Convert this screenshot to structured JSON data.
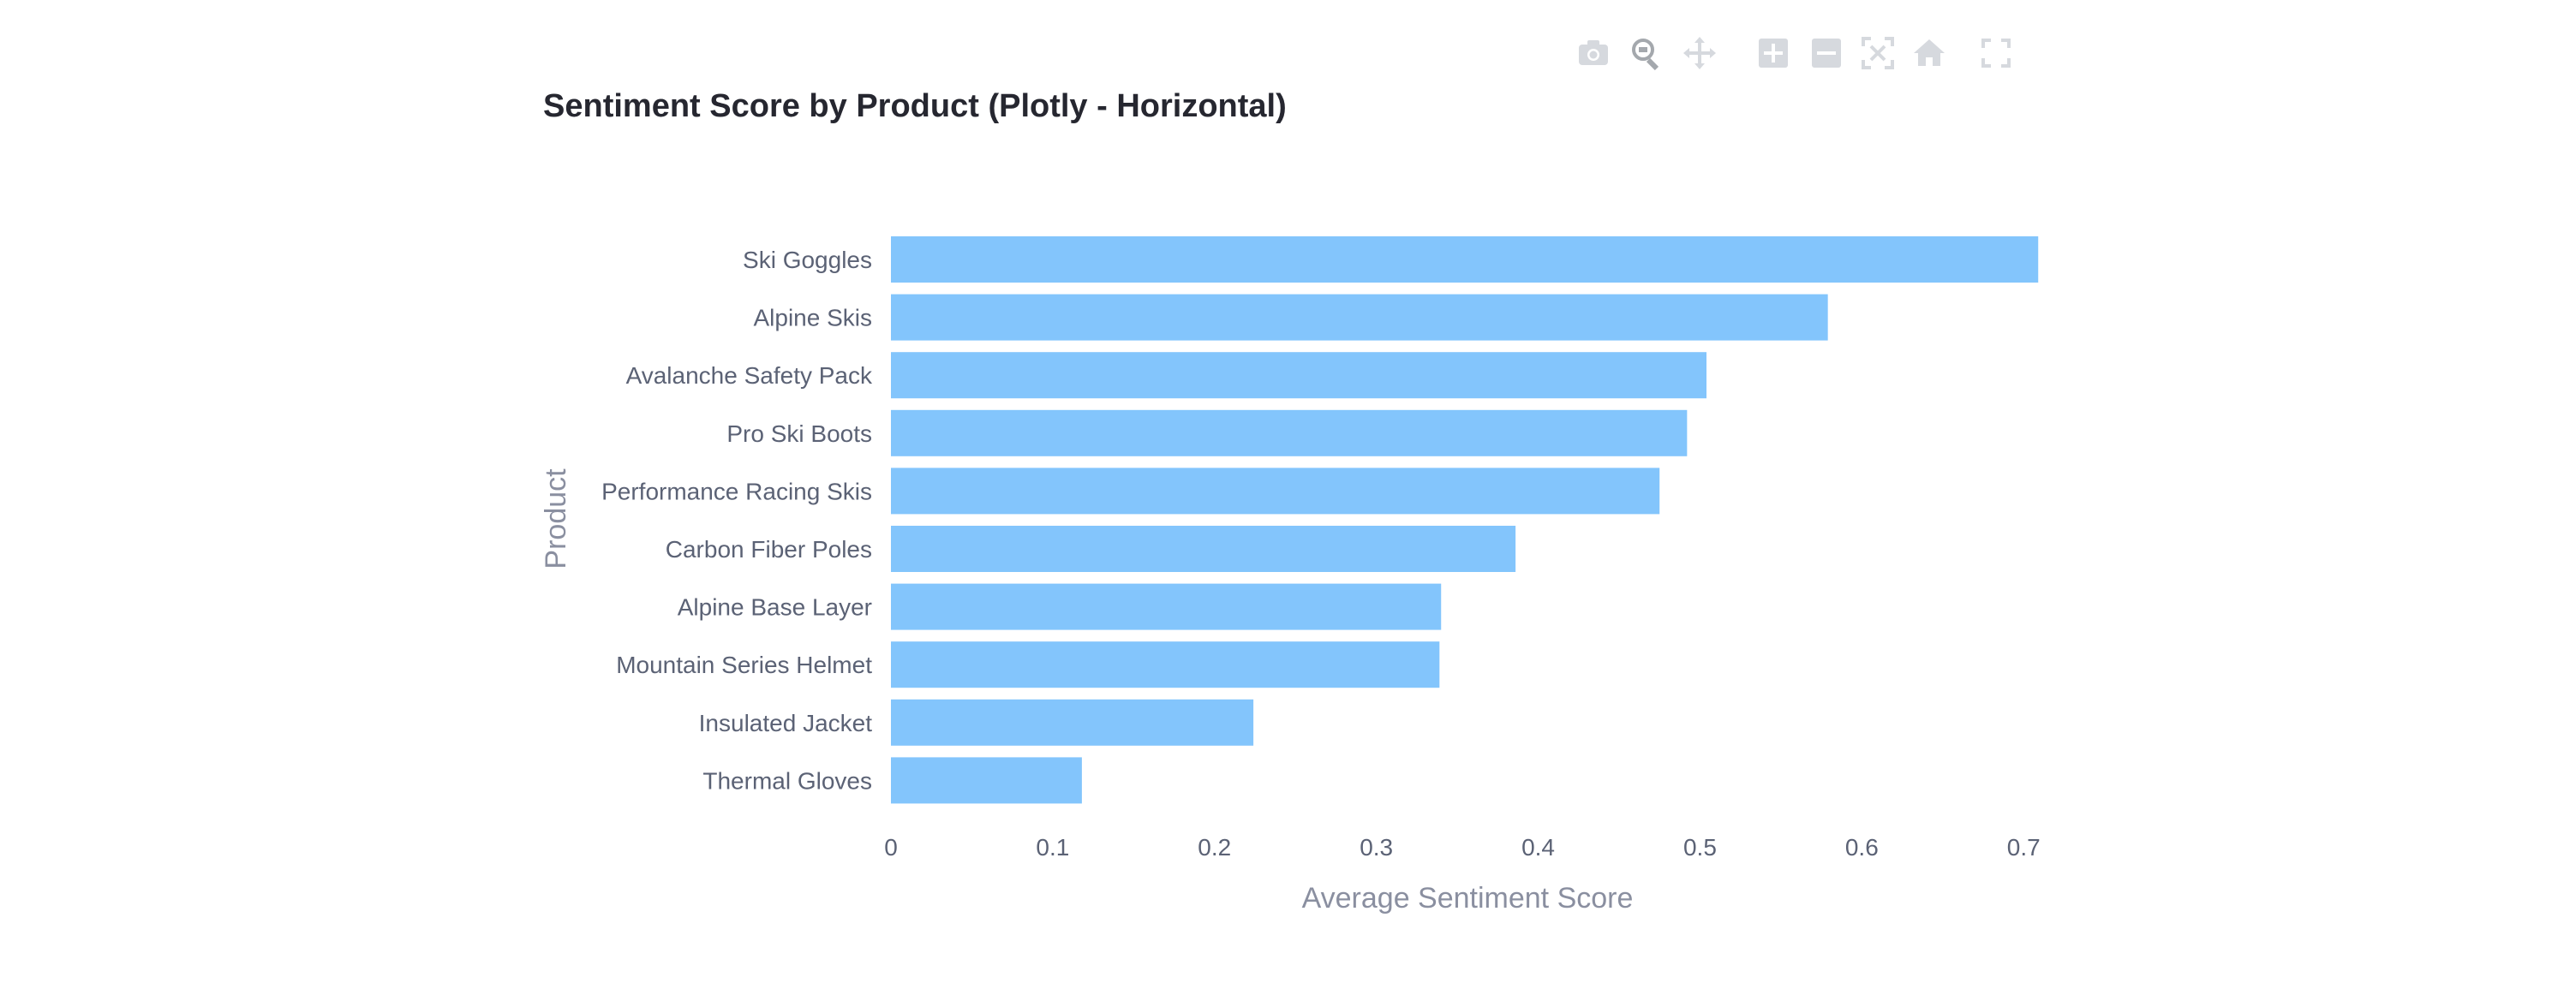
{
  "modebar": {
    "buttons": [
      {
        "name": "camera-icon",
        "active": false
      },
      {
        "name": "zoom-icon",
        "active": true
      },
      {
        "name": "pan-icon",
        "active": false
      },
      {
        "name": "zoom-in-icon",
        "active": false
      },
      {
        "name": "zoom-out-icon",
        "active": false
      },
      {
        "name": "autoscale-icon",
        "active": false
      },
      {
        "name": "home-icon",
        "active": false
      },
      {
        "name": "fullscreen-icon",
        "active": false
      }
    ]
  },
  "chart_data": {
    "type": "bar",
    "orientation": "horizontal",
    "title": "Sentiment Score by Product (Plotly - Horizontal)",
    "xlabel": "Average Sentiment Score",
    "ylabel": "Product",
    "categories": [
      "Ski Goggles",
      "Alpine Skis",
      "Avalanche Safety Pack",
      "Pro Ski Boots",
      "Performance Racing Skis",
      "Carbon Fiber Poles",
      "Alpine Base Layer",
      "Mountain Series Helmet",
      "Insulated Jacket",
      "Thermal Gloves"
    ],
    "values": [
      0.709,
      0.579,
      0.504,
      0.492,
      0.475,
      0.386,
      0.34,
      0.339,
      0.224,
      0.118
    ],
    "xlim": [
      0,
      0.72
    ],
    "xticks": [
      "0",
      "0.1",
      "0.2",
      "0.3",
      "0.4",
      "0.5",
      "0.6",
      "0.7"
    ],
    "bar_color": "#83c5fc",
    "grid": false,
    "legend": "none"
  }
}
